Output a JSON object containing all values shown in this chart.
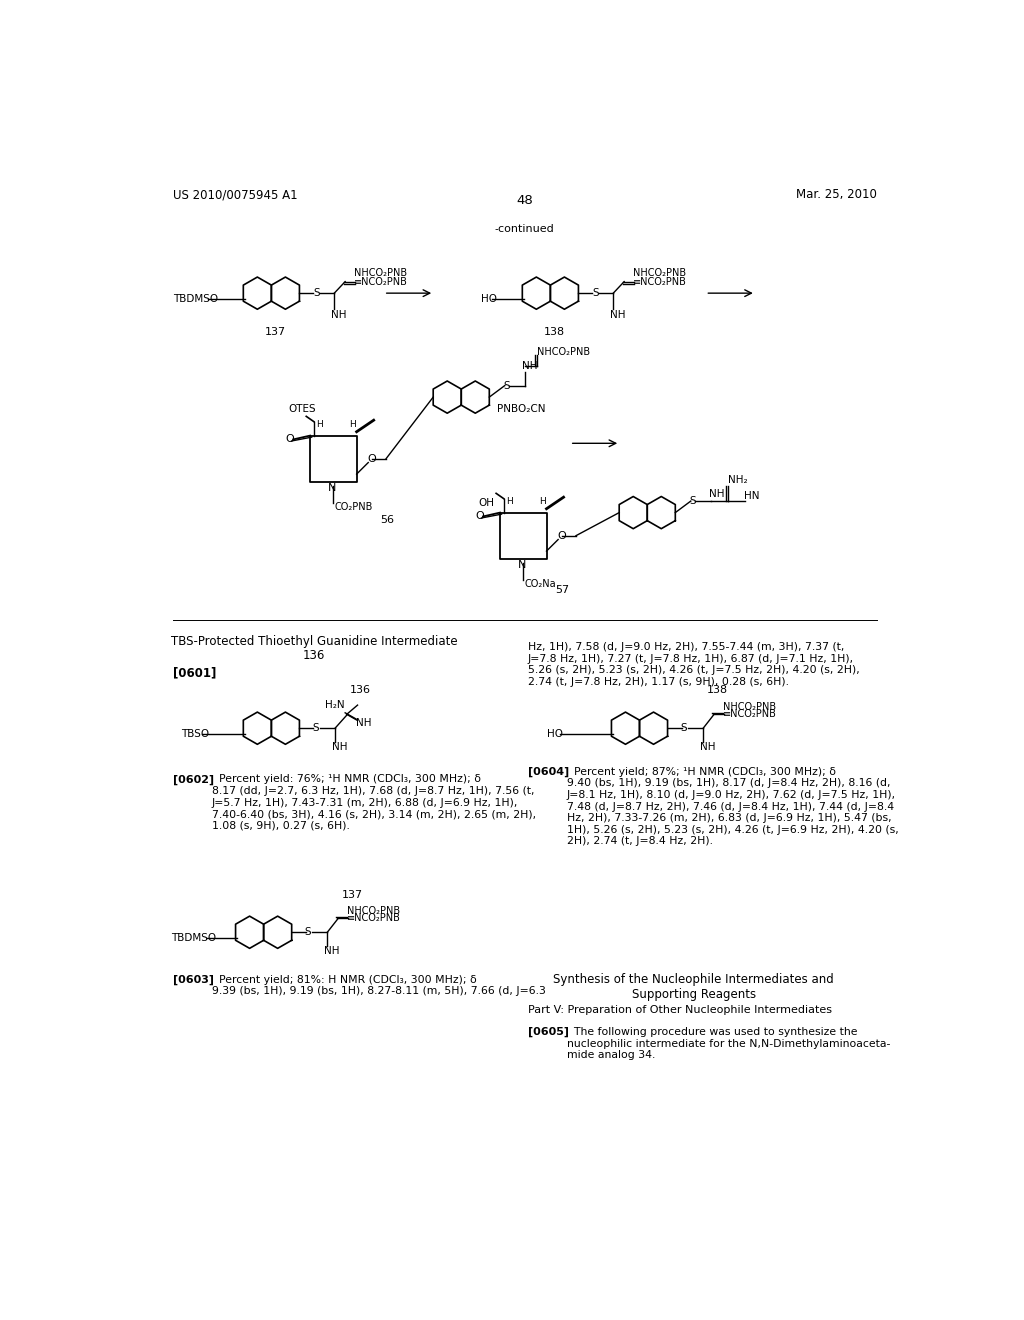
{
  "background_color": "#ffffff",
  "header_left": "US 2010/0075945 A1",
  "header_right": "Mar. 25, 2010",
  "page_number": "48",
  "continued_label": "-continued",
  "title_text": "TBS-Protected Thioethyl Guanidine Intermediate\n136",
  "para_0601": "[0601]",
  "para_0602_bold": "[0602]",
  "para_0602_text": "Percent yield: 76%; ¹H NMR (CDCl₃, 300 MHz); δ\n8.17 (dd, J=2.7, 6.3 Hz, 1H), 7.68 (d, J=8.7 Hz, 1H), 7.56 (t,\nJ=5.7 Hz, 1H), 7.43-7.31 (m, 2H), 6.88 (d, J=6.9 Hz, 1H),\n7.40-6.40 (bs, 3H), 4.16 (s, 2H), 3.14 (m, 2H), 2.65 (m, 2H),\n1.08 (s, 9H), 0.27 (s, 6H).",
  "para_0603_bold": "[0603]",
  "para_0603_text": "Percent yield; 81%: H NMR (CDCl₃, 300 MHz); δ\n9.39 (bs, 1H), 9.19 (bs, 1H), 8.27-8.11 (m, 5H), 7.66 (d, J=6.3",
  "para_0604_bold": "[0604]",
  "para_0604_text": "Percent yield; 87%; ¹H NMR (CDCl₃, 300 MHz); δ\n9.40 (bs, 1H), 9.19 (bs, 1H), 8.17 (d, J=8.4 Hz, 2H), 8.16 (d,\nJ=8.1 Hz, 1H), 8.10 (d, J=9.0 Hz, 2H), 7.62 (d, J=7.5 Hz, 1H),\n7.48 (d, J=8.7 Hz, 2H), 7.46 (d, J=8.4 Hz, 1H), 7.44 (d, J=8.4\nHz, 2H), 7.33-7.26 (m, 2H), 6.83 (d, J=6.9 Hz, 1H), 5.47 (bs,\n1H), 5.26 (s, 2H), 5.23 (s, 2H), 4.26 (t, J=6.9 Hz, 2H), 4.20 (s,\n2H), 2.74 (t, J=8.4 Hz, 2H).",
  "para_right_cont": "Hz, 1H), 7.58 (d, J=9.0 Hz, 2H), 7.55-7.44 (m, 3H), 7.37 (t,\nJ=7.8 Hz, 1H), 7.27 (t, J=7.8 Hz, 1H), 6.87 (d, J=7.1 Hz, 1H),\n5.26 (s, 2H), 5.23 (s, 2H), 4.26 (t, J=7.5 Hz, 2H), 4.20 (s, 2H),\n2.74 (t, J=7.8 Hz, 2H), 1.17 (s, 9H), 0.28 (s, 6H).",
  "synthesis_title": "Synthesis of the Nucleophile Intermediates and\nSupporting Reagents",
  "part_v_title": "Part V: Preparation of Other Nucleophile Intermediates",
  "para_0605_bold": "[0605]",
  "para_0605_text": "The following procedure was used to synthesize the\nnucleophilic intermediate for the N,N-Dimethylaminoaceta-\nmide analog 34."
}
